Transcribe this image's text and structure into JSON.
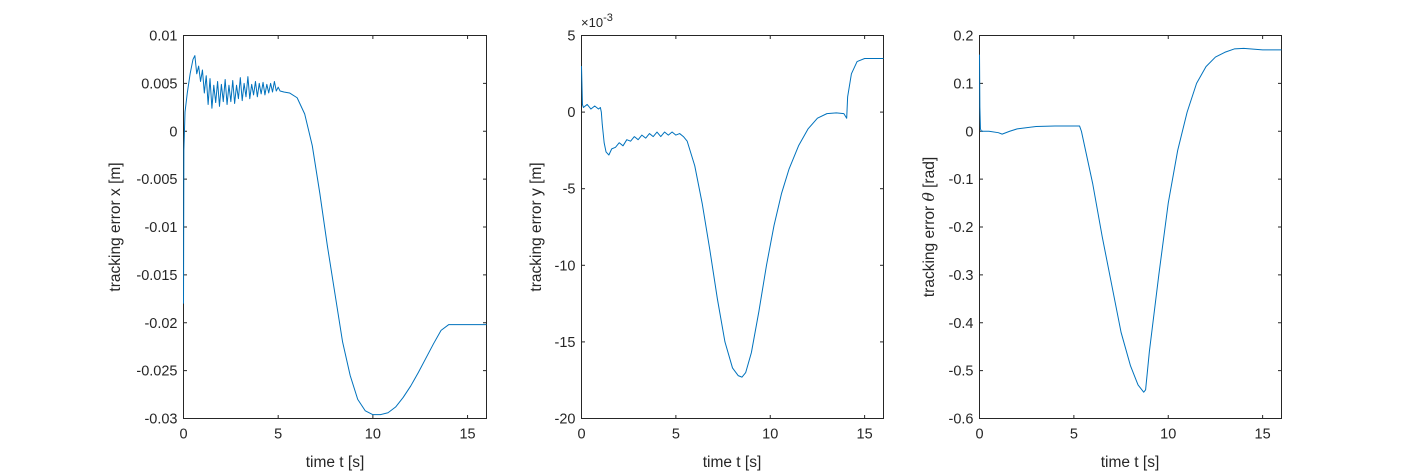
{
  "chart_data": [
    {
      "type": "line",
      "xlabel": "time t [s]",
      "ylabel": "tracking error x [m]",
      "xlim": [
        0,
        16
      ],
      "ylim": [
        -0.03,
        0.01
      ],
      "xticks": [
        0,
        5,
        10,
        15
      ],
      "xtick_labels": [
        "0",
        "5",
        "10",
        "15"
      ],
      "yticks": [
        -0.03,
        -0.025,
        -0.02,
        -0.015,
        -0.01,
        -0.005,
        0,
        0.005,
        0.01
      ],
      "ytick_labels": [
        "-0.03",
        "-0.025",
        "-0.02",
        "-0.015",
        "-0.01",
        "-0.005",
        "0",
        "0.005",
        "0.01"
      ],
      "grid": false,
      "color": "#0072BD",
      "series": [
        {
          "x": [
            0,
            0.02,
            0.08,
            0.2,
            0.35,
            0.5,
            0.6,
            0.7,
            0.8,
            0.9,
            1.0,
            1.1,
            1.2,
            1.3,
            1.4,
            1.5,
            1.6,
            1.7,
            1.8,
            1.9,
            2.0,
            2.1,
            2.2,
            2.3,
            2.4,
            2.5,
            2.6,
            2.7,
            2.8,
            2.9,
            3.0,
            3.1,
            3.2,
            3.3,
            3.4,
            3.5,
            3.6,
            3.7,
            3.8,
            3.9,
            4.0,
            4.1,
            4.2,
            4.3,
            4.4,
            4.5,
            4.6,
            4.7,
            4.8,
            4.9,
            5.0,
            5.1,
            5.3,
            5.6,
            6.0,
            6.4,
            6.8,
            7.2,
            7.6,
            8.0,
            8.4,
            8.8,
            9.2,
            9.6,
            10.0,
            10.4,
            10.8,
            11.2,
            11.6,
            12.0,
            12.4,
            12.8,
            13.2,
            13.6,
            14.0,
            14.2,
            14.4,
            15.0,
            16.0
          ],
          "y": [
            -0.018,
            -0.002,
            0.002,
            0.004,
            0.006,
            0.0075,
            0.0079,
            0.006,
            0.0068,
            0.0052,
            0.0064,
            0.004,
            0.0058,
            0.0028,
            0.0055,
            0.0024,
            0.0048,
            0.003,
            0.0052,
            0.0026,
            0.0049,
            0.0031,
            0.0054,
            0.0028,
            0.0048,
            0.0031,
            0.0053,
            0.0029,
            0.0048,
            0.0034,
            0.0056,
            0.0032,
            0.005,
            0.0036,
            0.0057,
            0.0034,
            0.0049,
            0.0038,
            0.0052,
            0.0036,
            0.005,
            0.0039,
            0.0051,
            0.0038,
            0.0049,
            0.004,
            0.005,
            0.0041,
            0.0052,
            0.0042,
            0.0046,
            0.0042,
            0.0041,
            0.004,
            0.0035,
            0.0018,
            -0.0015,
            -0.0065,
            -0.012,
            -0.017,
            -0.022,
            -0.0255,
            -0.028,
            -0.0292,
            -0.0296,
            -0.0296,
            -0.0294,
            -0.0288,
            -0.0278,
            -0.0266,
            -0.0252,
            -0.0237,
            -0.0222,
            -0.0208,
            -0.0202,
            -0.0202,
            -0.0202,
            -0.0202,
            -0.0202
          ]
        }
      ]
    },
    {
      "type": "line",
      "xlabel": "time t [s]",
      "ylabel": "tracking error y [m]",
      "xlim": [
        0,
        16
      ],
      "ylim": [
        -20,
        5
      ],
      "y_multiplier_base": "×10",
      "y_multiplier_exponent": "-3",
      "xticks": [
        0,
        5,
        10,
        15
      ],
      "xtick_labels": [
        "0",
        "5",
        "10",
        "15"
      ],
      "yticks": [
        -20,
        -15,
        -10,
        -5,
        0,
        5
      ],
      "ytick_labels": [
        "-20",
        "-15",
        "-10",
        "-5",
        "0",
        "5"
      ],
      "grid": false,
      "color": "#0072BD",
      "series": [
        {
          "x": [
            0,
            0.02,
            0.05,
            0.1,
            0.3,
            0.5,
            0.7,
            0.9,
            1.0,
            1.05,
            1.1,
            1.2,
            1.3,
            1.45,
            1.6,
            1.8,
            2.0,
            2.2,
            2.4,
            2.6,
            2.8,
            3.0,
            3.2,
            3.4,
            3.6,
            3.8,
            4.0,
            4.2,
            4.4,
            4.6,
            4.8,
            5.0,
            5.2,
            5.4,
            5.6,
            6.0,
            6.4,
            6.8,
            7.2,
            7.6,
            8.0,
            8.3,
            8.5,
            8.7,
            9.0,
            9.4,
            9.8,
            10.2,
            10.6,
            11.0,
            11.5,
            12.0,
            12.5,
            13.0,
            13.5,
            13.9,
            14.0,
            14.05,
            14.1,
            14.3,
            14.6,
            15.0,
            16.0
          ],
          "y": [
            3.0,
            2.0,
            0.5,
            0.3,
            0.5,
            0.2,
            0.4,
            0.2,
            0.3,
            0.0,
            -0.8,
            -2.0,
            -2.6,
            -2.8,
            -2.4,
            -2.3,
            -2.0,
            -2.2,
            -1.8,
            -1.9,
            -1.6,
            -1.8,
            -1.5,
            -1.7,
            -1.4,
            -1.6,
            -1.3,
            -1.6,
            -1.3,
            -1.5,
            -1.3,
            -1.5,
            -1.4,
            -1.6,
            -1.9,
            -3.5,
            -6.0,
            -9.0,
            -12.2,
            -15.0,
            -16.7,
            -17.2,
            -17.3,
            -17.0,
            -15.7,
            -13.0,
            -10.0,
            -7.4,
            -5.3,
            -3.7,
            -2.2,
            -1.1,
            -0.4,
            -0.1,
            -0.05,
            -0.1,
            -0.3,
            -0.4,
            1.0,
            2.5,
            3.3,
            3.5,
            3.5
          ]
        }
      ]
    },
    {
      "type": "line",
      "xlabel": "time t [s]",
      "ylabel_prefix": "tracking error ",
      "ylabel_symbol": "θ",
      "ylabel_suffix": " [rad]",
      "xlim": [
        0,
        16
      ],
      "ylim": [
        -0.6,
        0.2
      ],
      "xticks": [
        0,
        5,
        10,
        15
      ],
      "xtick_labels": [
        "0",
        "5",
        "10",
        "15"
      ],
      "yticks": [
        -0.6,
        -0.5,
        -0.4,
        -0.3,
        -0.2,
        -0.1,
        0,
        0.1,
        0.2
      ],
      "ytick_labels": [
        "-0.6",
        "-0.5",
        "-0.4",
        "-0.3",
        "-0.2",
        "-0.1",
        "0",
        "0.1",
        "0.2"
      ],
      "grid": false,
      "color": "#0072BD",
      "series": [
        {
          "x": [
            0,
            0.02,
            0.05,
            0.1,
            0.5,
            1.0,
            1.2,
            1.6,
            2.0,
            3.0,
            4.0,
            5.3,
            5.4,
            6.0,
            6.5,
            7.0,
            7.5,
            8.0,
            8.4,
            8.7,
            8.8,
            9.0,
            9.5,
            10.0,
            10.5,
            11.0,
            11.5,
            12.0,
            12.5,
            13.0,
            13.5,
            14.0,
            15.0,
            16.0
          ],
          "y": [
            0.16,
            0.05,
            0.005,
            0.0,
            0.0,
            -0.003,
            -0.006,
            0.0,
            0.005,
            0.01,
            0.011,
            0.011,
            0.0,
            -0.11,
            -0.22,
            -0.32,
            -0.42,
            -0.49,
            -0.53,
            -0.545,
            -0.54,
            -0.46,
            -0.3,
            -0.15,
            -0.04,
            0.04,
            0.1,
            0.135,
            0.155,
            0.165,
            0.172,
            0.173,
            0.17,
            0.17
          ]
        }
      ]
    }
  ]
}
